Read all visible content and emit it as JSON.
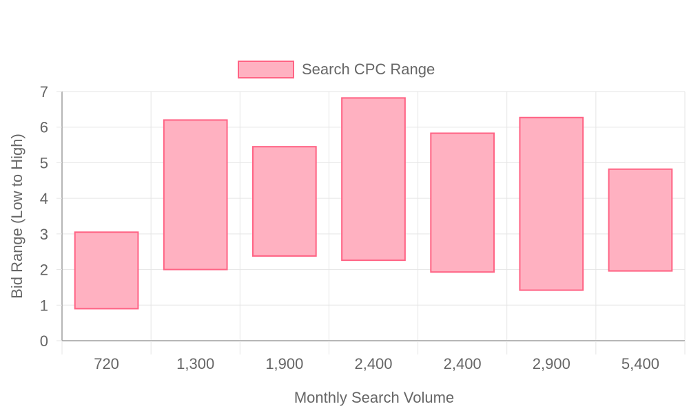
{
  "chart_data": {
    "type": "bar",
    "chart_style": "floating-range",
    "categories": [
      "720",
      "1,300",
      "1,900",
      "2,400",
      "2,400",
      "2,900",
      "5,400"
    ],
    "series": [
      {
        "name": "Search CPC Range",
        "ranges": [
          [
            0.9,
            3.05
          ],
          [
            2.0,
            6.2
          ],
          [
            2.38,
            5.45
          ],
          [
            2.26,
            6.82
          ],
          [
            1.93,
            5.83
          ],
          [
            1.42,
            6.27
          ],
          [
            1.96,
            4.82
          ]
        ]
      }
    ],
    "xlabel": "Monthly Search Volume",
    "ylabel": "Bid Range (Low to High)",
    "ylim": [
      0,
      7
    ],
    "yticks": [
      "0",
      "1",
      "2",
      "3",
      "4",
      "5",
      "6",
      "7"
    ],
    "grid": true,
    "legend": "top-center",
    "colors": {
      "bar_fill": "#ffb1c1",
      "bar_border": "#ff6384",
      "grid": "#e5e5e5",
      "axis": "#9e9e9e",
      "text": "#666666"
    }
  }
}
